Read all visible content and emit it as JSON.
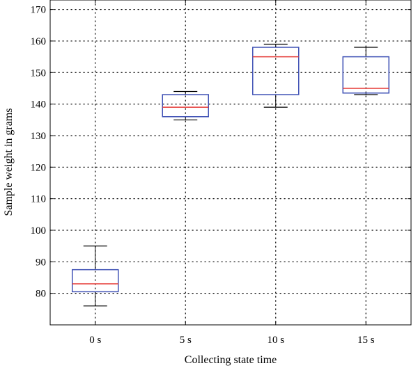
{
  "chart_data": {
    "type": "box",
    "title": "",
    "xlabel": "Collecting state time",
    "ylabel": "Sample weight in grams",
    "categories": [
      "0 s",
      "5 s",
      "10 s",
      "15 s"
    ],
    "boxes": [
      {
        "category": "0 s",
        "whisker_low": 76,
        "q1": 80.5,
        "median": 83,
        "q3": 87.5,
        "whisker_high": 95
      },
      {
        "category": "5 s",
        "whisker_low": 135,
        "q1": 136,
        "median": 139,
        "q3": 143,
        "whisker_high": 144
      },
      {
        "category": "10 s",
        "whisker_low": 139,
        "q1": 143,
        "median": 155,
        "q3": 158,
        "whisker_high": 159
      },
      {
        "category": "15 s",
        "whisker_low": 143,
        "q1": 143.5,
        "median": 145,
        "q3": 155,
        "whisker_high": 158
      }
    ],
    "ylim": [
      70,
      173
    ],
    "yticks": [
      80,
      90,
      100,
      110,
      120,
      130,
      140,
      150,
      160,
      170
    ],
    "grid": true,
    "colors": {
      "box": "#3f51b5",
      "median": "#e53935",
      "whisker": "#000000",
      "grid": "#000000"
    }
  }
}
